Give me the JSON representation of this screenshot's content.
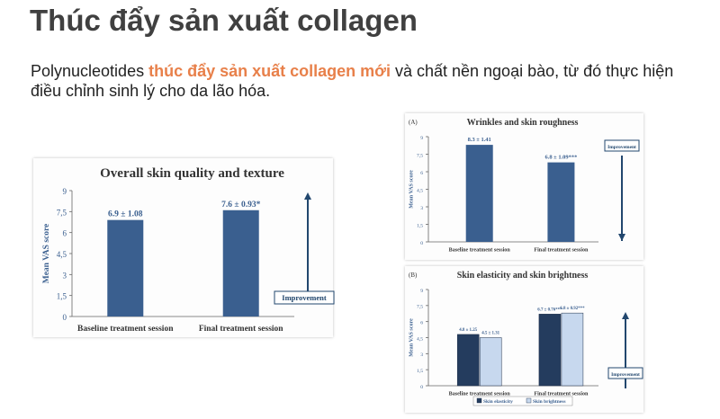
{
  "slide": {
    "title": "Thúc đẩy sản xuất collagen",
    "intro_before": "Polynucleotides ",
    "intro_highlight": "thúc đẩy sản xuất collagen mới",
    "intro_after": " và chất nền ngoại bào, từ đó thực hiện điều chỉnh sinh lý cho da lão hóa."
  },
  "chart_data": [
    {
      "type": "bar",
      "title": "Overall skin quality and texture",
      "ylabel": "Mean VAS score",
      "ylim": [
        0,
        9
      ],
      "yticks": [
        "0",
        "1,5",
        "3",
        "4,5",
        "6",
        "7,5",
        "9"
      ],
      "categories": [
        "Baseline treatment session",
        "Final  treatment session"
      ],
      "series": [
        {
          "values": [
            6.9,
            7.6
          ],
          "labels": [
            "6.9 ± 1.08",
            "7.6 ± 0.93*"
          ],
          "color": "#3a5f8f"
        }
      ],
      "annotation": "Improvement"
    },
    {
      "type": "bar",
      "panel_label": "(A)",
      "title": "Wrinkles and skin roughness",
      "ylabel": "Mean VAS score",
      "ylim": [
        0,
        9
      ],
      "yticks": [
        "0",
        "1,5",
        "3",
        "4,5",
        "6",
        "7,5",
        "9"
      ],
      "categories": [
        "Baseline treatment session",
        "Final  treatment session"
      ],
      "series": [
        {
          "values": [
            8.3,
            6.8
          ],
          "labels": [
            "8.3 ± 1.41",
            "6.8 ± 1.09***"
          ],
          "color": "#3a5f8f"
        }
      ],
      "annotation": "Improvement"
    },
    {
      "type": "bar",
      "panel_label": "(B)",
      "title": "Skin elasticity and skin brightness",
      "ylabel": "Mean VAS score",
      "ylim": [
        0,
        9
      ],
      "yticks": [
        "0",
        "1,5",
        "3",
        "4,5",
        "6",
        "7,5",
        "9"
      ],
      "categories": [
        "Baseline treatment session",
        "Final  treatment session"
      ],
      "series": [
        {
          "name": "Skin elasticity",
          "values": [
            4.8,
            6.7
          ],
          "labels": [
            "4.8 ± 1.25",
            "6.7 ± 0.76***"
          ],
          "color": "#243c5e"
        },
        {
          "name": "Skin brightness",
          "values": [
            4.5,
            6.8
          ],
          "labels": [
            "4.5 ± 1.31",
            "6.8 ± 0.92***"
          ],
          "color": "#c7d8ee"
        }
      ],
      "legend": "bottom",
      "annotation": "Improvement"
    }
  ]
}
